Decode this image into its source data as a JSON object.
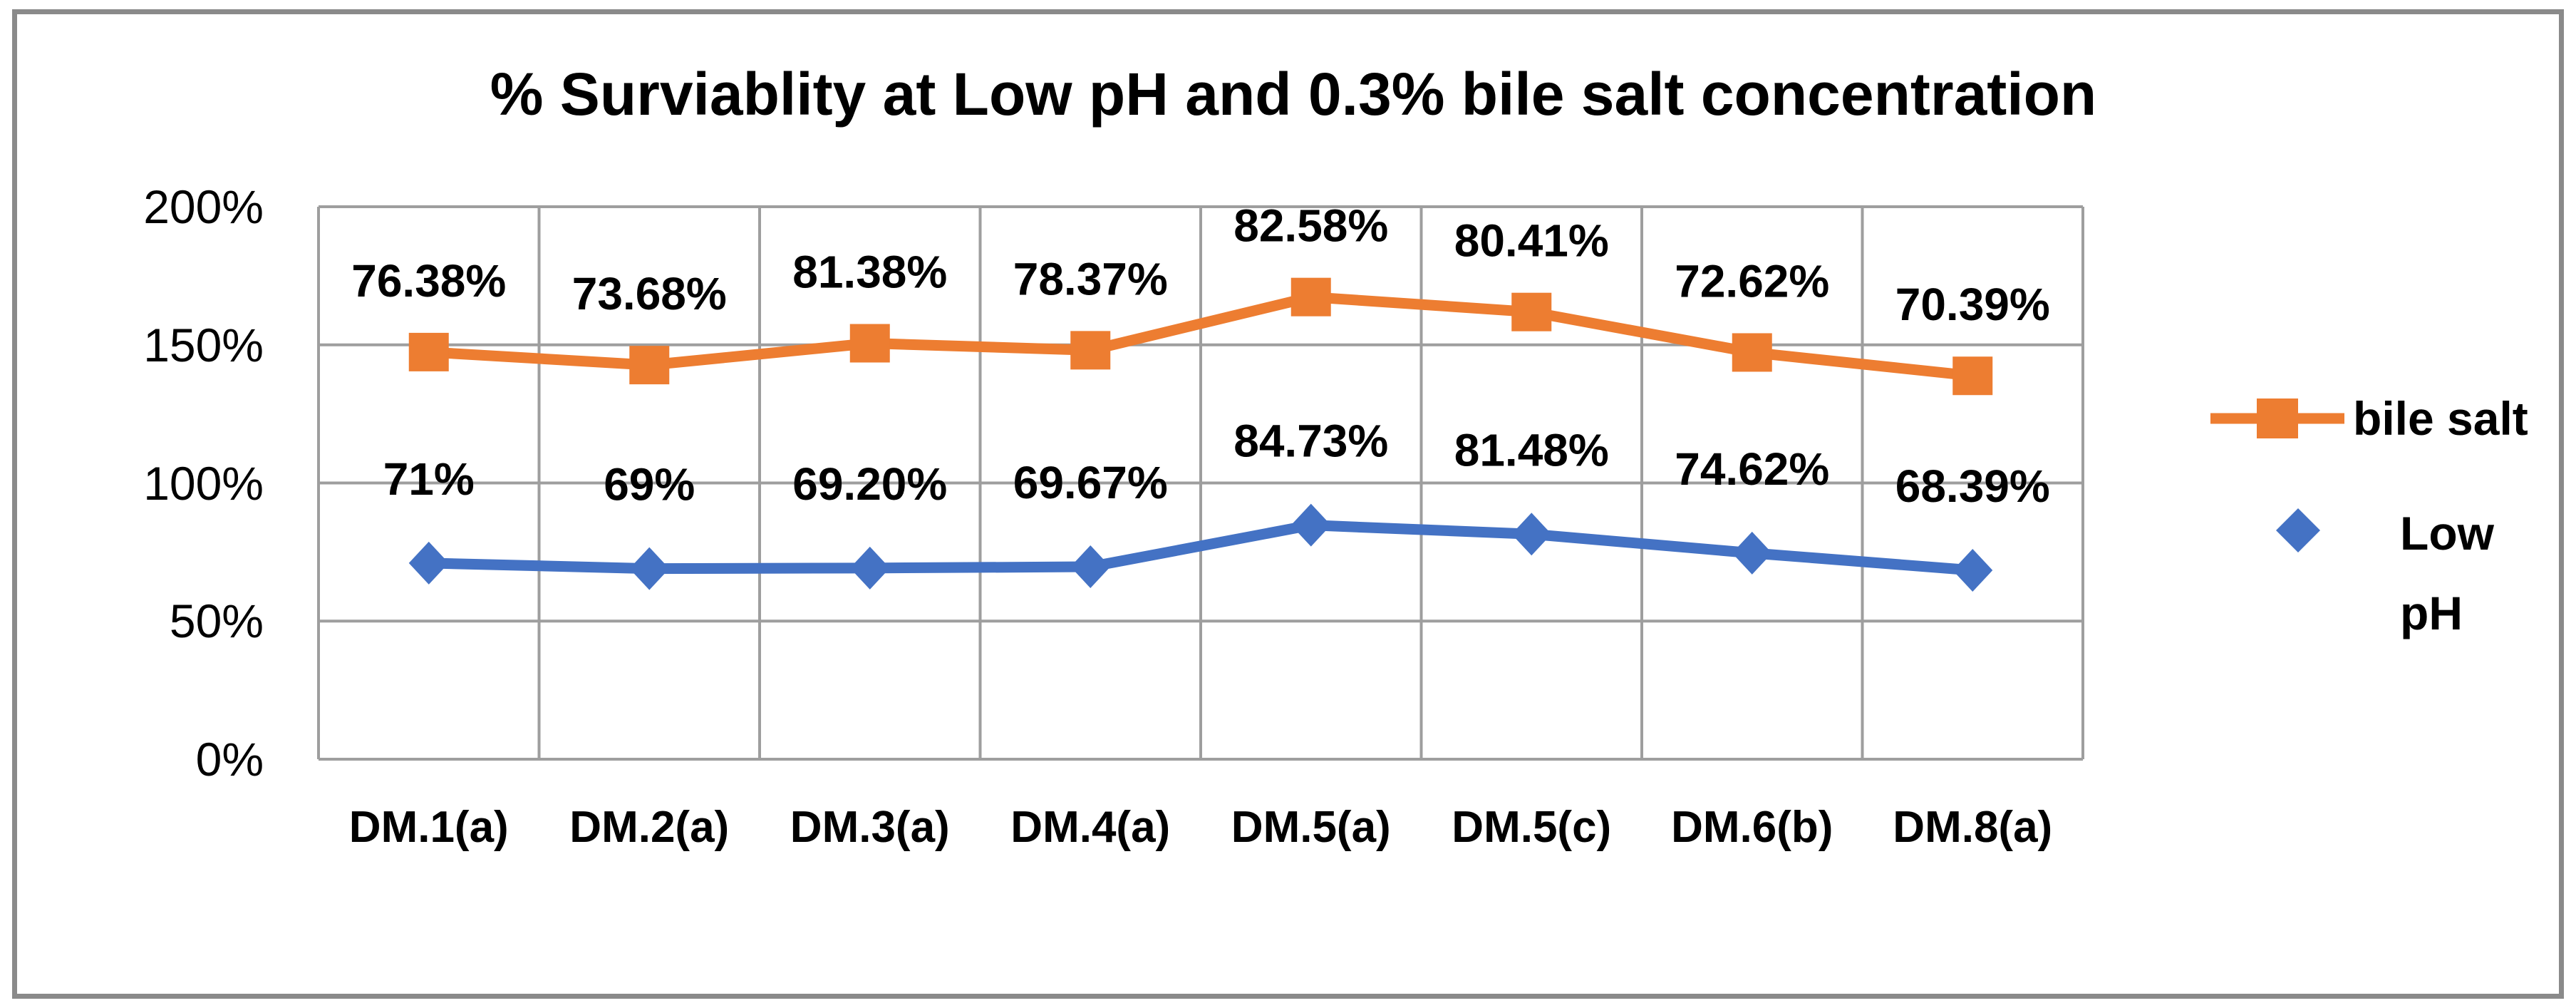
{
  "chart_data": {
    "type": "line",
    "stacked": true,
    "title": "% Surviablity at Low pH and 0.3% bile salt concentration",
    "categories": [
      "DM.1(a)",
      "DM.2(a)",
      "DM.3(a)",
      "DM.4(a)",
      "DM.5(a)",
      "DM.5(c)",
      "DM.6(b)",
      "DM.8(a)"
    ],
    "series": [
      {
        "name": "Low pH",
        "color": "#4472C4",
        "marker": "diamond",
        "values": [
          71,
          69,
          69.2,
          69.67,
          84.73,
          81.48,
          74.62,
          68.39
        ],
        "data_labels": [
          "71%",
          "69%",
          "69.20%",
          "69.67%",
          "84.73%",
          "81.48%",
          "74.62%",
          "68.39%"
        ]
      },
      {
        "name": "bile salt",
        "color": "#ED7D31",
        "marker": "square",
        "values": [
          76.38,
          73.68,
          81.38,
          78.37,
          82.58,
          80.41,
          72.62,
          70.39
        ],
        "data_labels": [
          "76.38%",
          "73.68%",
          "81.38%",
          "78.37%",
          "82.58%",
          "80.41%",
          "72.62%",
          "70.39%"
        ]
      }
    ],
    "y_axis": {
      "ticks": [
        "200%",
        "150%",
        "100%",
        "50%",
        "0%"
      ],
      "tick_values": [
        200,
        150,
        100,
        50,
        0
      ],
      "ylim": [
        0,
        200
      ],
      "grid": true
    },
    "legend": {
      "position": "right",
      "entries": [
        "bile salt",
        "Low pH"
      ]
    },
    "colors": {
      "grid": "#9e9e9e",
      "frame_border": "#8a8a8a",
      "text": "#000000",
      "bile_salt": "#ED7D31",
      "low_ph": "#4472C4"
    }
  }
}
